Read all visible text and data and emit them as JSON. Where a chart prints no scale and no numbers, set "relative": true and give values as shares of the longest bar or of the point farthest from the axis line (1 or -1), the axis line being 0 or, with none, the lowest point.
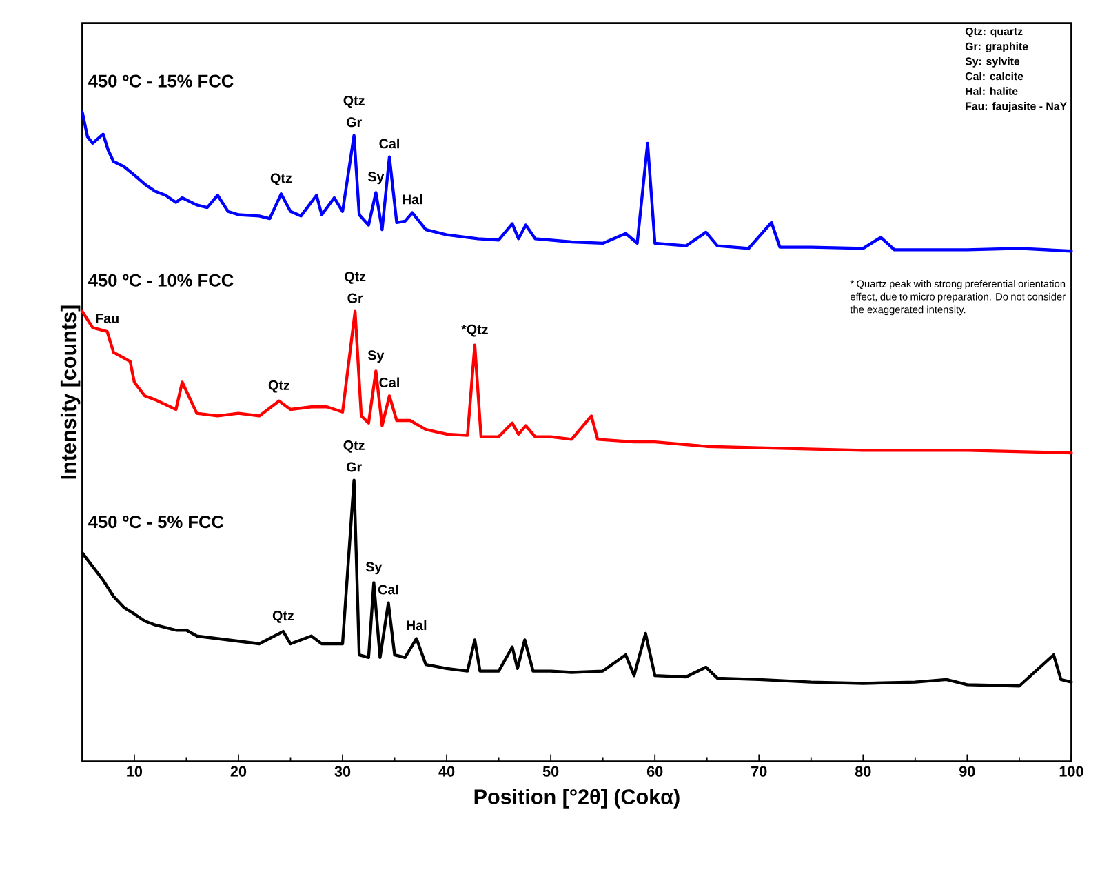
{
  "chart_data": {
    "type": "line",
    "relative": true,
    "xlabel": "Position [°2θ] (Cokα)",
    "ylabel": "Intensity [counts]",
    "xlim": [
      5,
      100
    ],
    "xticks": [
      10,
      20,
      30,
      40,
      50,
      60,
      70,
      80,
      90,
      100
    ],
    "series": [
      {
        "name": "450 ºC - 15% FCC",
        "color": "#0000ff",
        "x": [
          5,
          5.5,
          6,
          7,
          7.5,
          8,
          9,
          10,
          11,
          12,
          13,
          14,
          14.6,
          16,
          17,
          18,
          19,
          20,
          22,
          23,
          24.1,
          25,
          26,
          27.5,
          28,
          29.2,
          30,
          31.1,
          31.6,
          32.5,
          33.2,
          33.8,
          34.5,
          35.2,
          36,
          36.7,
          38,
          40,
          43,
          45,
          46.3,
          46.9,
          47.6,
          48.5,
          52,
          55,
          57.2,
          58.3,
          59.3,
          60,
          63,
          64.9,
          66,
          69,
          71.2,
          72,
          75,
          80,
          81.7,
          83,
          90,
          95,
          100
        ],
        "values": [
          1.0,
          0.962,
          0.952,
          0.966,
          0.941,
          0.924,
          0.916,
          0.903,
          0.889,
          0.878,
          0.872,
          0.861,
          0.868,
          0.857,
          0.853,
          0.872,
          0.847,
          0.842,
          0.84,
          0.836,
          0.874,
          0.847,
          0.84,
          0.872,
          0.842,
          0.868,
          0.847,
          0.964,
          0.842,
          0.826,
          0.876,
          0.819,
          0.931,
          0.83,
          0.832,
          0.845,
          0.819,
          0.811,
          0.805,
          0.803,
          0.828,
          0.805,
          0.826,
          0.805,
          0.8,
          0.798,
          0.813,
          0.798,
          0.952,
          0.798,
          0.794,
          0.815,
          0.794,
          0.79,
          0.83,
          0.792,
          0.792,
          0.79,
          0.807,
          0.788,
          0.788,
          0.79,
          0.786
        ]
      },
      {
        "name": "450 ºC - 10% FCC",
        "color": "#ff0000",
        "x": [
          5,
          6,
          7.4,
          8,
          9.6,
          10,
          11,
          12,
          14,
          14.6,
          16,
          18,
          20,
          22,
          23.9,
          25,
          27,
          28.5,
          30,
          31.2,
          31.8,
          32.5,
          33.2,
          33.8,
          34.5,
          35.2,
          36.5,
          38,
          40,
          42,
          42.7,
          43.3,
          45,
          46.3,
          46.9,
          47.6,
          48.5,
          50,
          52,
          53.9,
          54.5,
          58,
          60,
          65,
          70,
          80,
          90,
          100
        ],
        "values": [
          0.693,
          0.668,
          0.662,
          0.63,
          0.616,
          0.584,
          0.563,
          0.557,
          0.542,
          0.584,
          0.536,
          0.532,
          0.536,
          0.532,
          0.555,
          0.542,
          0.546,
          0.546,
          0.538,
          0.693,
          0.532,
          0.521,
          0.601,
          0.517,
          0.563,
          0.525,
          0.525,
          0.511,
          0.504,
          0.502,
          0.641,
          0.5,
          0.5,
          0.521,
          0.504,
          0.517,
          0.5,
          0.5,
          0.496,
          0.532,
          0.496,
          0.492,
          0.492,
          0.485,
          0.483,
          0.479,
          0.479,
          0.475
        ]
      },
      {
        "name": "450 ºC - 5% FCC",
        "color": "#000000",
        "x": [
          5,
          6,
          7,
          8,
          9,
          10,
          11,
          12,
          13,
          14,
          15,
          16,
          18,
          20,
          22,
          24.3,
          25,
          27,
          28,
          30,
          31.1,
          31.6,
          32.5,
          33.0,
          33.6,
          34.4,
          35,
          36,
          37.1,
          38,
          40,
          42,
          42.7,
          43.2,
          45,
          46.3,
          46.8,
          47.5,
          48.3,
          50,
          52,
          55,
          57.2,
          58,
          59.1,
          60,
          63,
          64.9,
          66,
          70,
          75,
          80,
          85,
          88,
          90,
          95,
          98.3,
          99,
          100
        ],
        "values": [
          0.321,
          0.3,
          0.279,
          0.254,
          0.237,
          0.227,
          0.216,
          0.21,
          0.206,
          0.202,
          0.202,
          0.193,
          0.189,
          0.185,
          0.181,
          0.2,
          0.181,
          0.193,
          0.181,
          0.181,
          0.433,
          0.164,
          0.16,
          0.275,
          0.16,
          0.244,
          0.164,
          0.16,
          0.189,
          0.149,
          0.143,
          0.139,
          0.187,
          0.139,
          0.139,
          0.176,
          0.143,
          0.187,
          0.139,
          0.139,
          0.137,
          0.139,
          0.164,
          0.132,
          0.197,
          0.132,
          0.13,
          0.145,
          0.128,
          0.126,
          0.122,
          0.12,
          0.122,
          0.126,
          0.118,
          0.116,
          0.164,
          0.126,
          0.122
        ]
      }
    ],
    "annotations": [
      {
        "text": "Qtz",
        "x": 24.1,
        "y": 0.874
      },
      {
        "text": "Qtz",
        "x": 31.1,
        "y": 0.964
      },
      {
        "text": "Gr",
        "x": 31.1,
        "y": 0.964
      },
      {
        "text": "Sy",
        "x": 33.2,
        "y": 0.876
      },
      {
        "text": "Cal",
        "x": 34.5,
        "y": 0.931
      },
      {
        "text": "Hal",
        "x": 36.7,
        "y": 0.845
      },
      {
        "text": "Fau",
        "x": 7.4,
        "y": 0.662
      },
      {
        "text": "Qtz",
        "x": 23.9,
        "y": 0.555
      },
      {
        "text": "Qtz",
        "x": 31.2,
        "y": 0.693
      },
      {
        "text": "Gr",
        "x": 31.2,
        "y": 0.693
      },
      {
        "text": "Sy",
        "x": 33.2,
        "y": 0.601
      },
      {
        "text": "Cal",
        "x": 34.5,
        "y": 0.563
      },
      {
        "text": "*Qtz",
        "x": 42.7,
        "y": 0.641
      },
      {
        "text": "Qtz",
        "x": 24.3,
        "y": 0.2
      },
      {
        "text": "Qtz",
        "x": 31.1,
        "y": 0.433
      },
      {
        "text": "Gr",
        "x": 31.1,
        "y": 0.433
      },
      {
        "text": "Sy",
        "x": 33.0,
        "y": 0.275
      },
      {
        "text": "Cal",
        "x": 34.4,
        "y": 0.244
      },
      {
        "text": "Hal",
        "x": 37.1,
        "y": 0.189
      },
      "Qtz: quartz",
      "Gr: graphite",
      "Sy: sylvite",
      "Cal: calcite",
      "Hal: halite",
      "Fau: faujasite - NaY",
      "* Quartz peak with strong preferential orientation effect, due to micro preparation. Do not consider the exaggerated intensity."
    ]
  }
}
